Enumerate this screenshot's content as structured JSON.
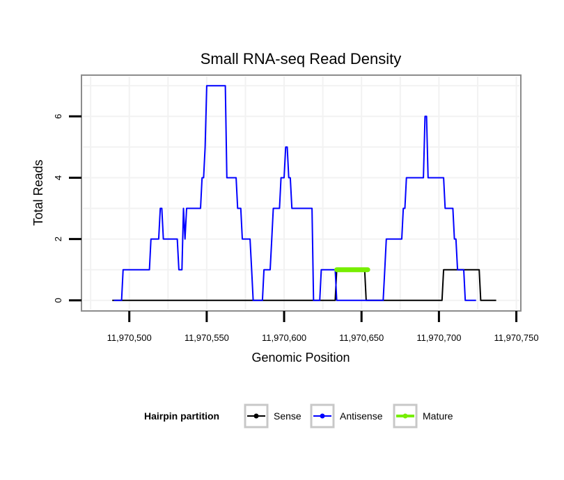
{
  "chart_data": {
    "type": "line",
    "title": "Small RNA-seq Read Density",
    "xlabel": "Genomic Position",
    "ylabel": "Total Reads",
    "xlim": [
      11970470,
      11970752
    ],
    "ylim": [
      -0.3,
      7.3
    ],
    "x_ticks": [
      11970500,
      11970550,
      11970600,
      11970650,
      11970700,
      11970750
    ],
    "x_tick_labels": [
      "11,970,500",
      "11,970,550",
      "11,970,600",
      "11,970,650",
      "11,970,700",
      "11,970,750"
    ],
    "y_ticks": [
      0,
      2,
      4,
      6
    ],
    "y_tick_labels": [
      "0",
      "2",
      "4",
      "6"
    ],
    "grid": true,
    "legend": {
      "title": "Hairpin partition",
      "position": "bottom",
      "entries": [
        {
          "name": "Sense",
          "color": "#000000"
        },
        {
          "name": "Antisense",
          "color": "#0000ff"
        },
        {
          "name": "Mature",
          "color": "#77ee00"
        }
      ]
    },
    "series": [
      {
        "name": "Sense",
        "color": "#000000",
        "x": [
          11970489,
          11970633,
          11970634,
          11970652,
          11970653,
          11970702,
          11970703,
          11970726,
          11970727,
          11970737
        ],
        "y": [
          0,
          0,
          1,
          1,
          0,
          0,
          1,
          1,
          0,
          0
        ]
      },
      {
        "name": "Antisense",
        "color": "#0000ff",
        "x": [
          11970490,
          11970495,
          11970496,
          11970513,
          11970514,
          11970519,
          11970520,
          11970521,
          11970522,
          11970531,
          11970532,
          11970534,
          11970535,
          11970536,
          11970537,
          11970546,
          11970547,
          11970548,
          11970549,
          11970550,
          11970551,
          11970562,
          11970563,
          11970569,
          11970570,
          11970572,
          11970573,
          11970578,
          11970579,
          11970580,
          11970581,
          11970586,
          11970587,
          11970588,
          11970591,
          11970592,
          11970593,
          11970594,
          11970595,
          11970597,
          11970598,
          11970600,
          11970601,
          11970602,
          11970603,
          11970604,
          11970605,
          11970609,
          11970610,
          11970618,
          11970619,
          11970623,
          11970624,
          11970633,
          11970634,
          11970639,
          11970640,
          11970652,
          11970653,
          11970664,
          11970665,
          11970666,
          11970667,
          11970676,
          11970677,
          11970678,
          11970679,
          11970682,
          11970683,
          11970690,
          11970691,
          11970692,
          11970693,
          11970703,
          11970704,
          11970709,
          11970710,
          11970711,
          11970712,
          11970716,
          11970717,
          11970724
        ],
        "y": [
          0,
          0,
          1,
          1,
          2,
          2,
          3,
          3,
          2,
          2,
          1,
          1,
          3,
          2,
          3,
          3,
          4,
          4,
          5,
          7,
          7,
          7,
          4,
          4,
          3,
          3,
          2,
          2,
          1,
          0,
          0,
          0,
          1,
          1,
          1,
          2,
          3,
          3,
          3,
          3,
          4,
          4,
          5,
          5,
          4,
          4,
          3,
          3,
          3,
          3,
          0,
          0,
          1,
          1,
          0,
          0,
          0,
          0,
          0,
          0,
          1,
          2,
          2,
          2,
          3,
          3,
          4,
          4,
          4,
          4,
          6,
          6,
          4,
          4,
          3,
          3,
          2,
          2,
          1,
          1,
          0,
          0
        ]
      },
      {
        "name": "Mature",
        "color": "#77ee00",
        "x": [
          11970634,
          11970654
        ],
        "y": [
          1,
          1
        ]
      }
    ]
  }
}
